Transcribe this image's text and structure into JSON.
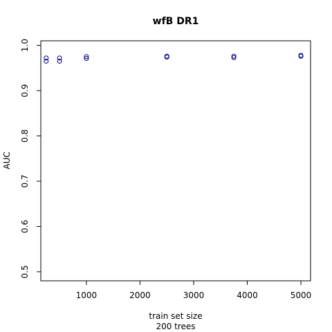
{
  "chart_data": {
    "type": "scatter",
    "title": "wfB DR1",
    "xlabel": "train set size",
    "xlabel_sub": "200 trees",
    "ylabel": "AUC",
    "xlim": [
      150,
      5180
    ],
    "ylim": [
      0.48,
      1.01
    ],
    "xticks": [
      1000,
      2000,
      3000,
      4000,
      5000
    ],
    "yticks": [
      0.5,
      0.6,
      0.7,
      0.8,
      0.9,
      1.0
    ],
    "ytick_labels": [
      "0.5",
      "0.6",
      "0.7",
      "0.8",
      "0.9",
      "1.0"
    ],
    "marker": "open-circle",
    "point_color": "#00008B",
    "grid": false,
    "points": [
      {
        "x": 250,
        "y": 0.972
      },
      {
        "x": 250,
        "y": 0.965
      },
      {
        "x": 500,
        "y": 0.972
      },
      {
        "x": 500,
        "y": 0.965
      },
      {
        "x": 1000,
        "y": 0.975
      },
      {
        "x": 1000,
        "y": 0.971
      },
      {
        "x": 2500,
        "y": 0.976
      },
      {
        "x": 2500,
        "y": 0.974
      },
      {
        "x": 3750,
        "y": 0.976
      },
      {
        "x": 3750,
        "y": 0.973
      },
      {
        "x": 5000,
        "y": 0.978
      },
      {
        "x": 5000,
        "y": 0.976
      }
    ]
  }
}
